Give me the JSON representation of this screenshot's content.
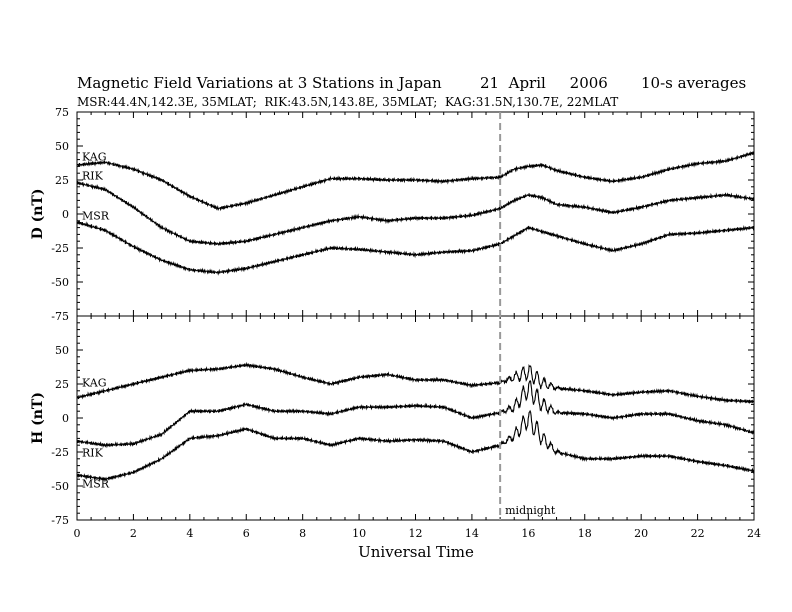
{
  "title": {
    "main": "Magnetic Field Variations at 3 Stations in Japan",
    "date": "21  April     2006",
    "avg": "10-s averages"
  },
  "subtitle": "MSR:44.4N,142.3E, 35MLAT;  RIK:43.5N,143.8E, 35MLAT;  KAG:31.5N,130.7E, 22MLAT",
  "chart_data": [
    {
      "type": "line",
      "panel": "D",
      "ylabel": "D (nT)",
      "ylim": [
        -75,
        75
      ],
      "yticks": [
        75,
        50,
        25,
        0,
        -25,
        -50,
        -75
      ],
      "xlim": [
        0,
        24
      ],
      "grid": false,
      "series": [
        {
          "name": "KAG",
          "x": [
            0,
            1,
            2,
            3,
            4,
            5,
            6,
            7,
            8,
            9,
            10,
            11,
            12,
            13,
            14,
            15,
            15.5,
            16,
            16.5,
            17,
            18,
            19,
            20,
            21,
            22,
            23,
            24
          ],
          "values": [
            36,
            38,
            33,
            25,
            13,
            4,
            8,
            14,
            20,
            26,
            26,
            25,
            25,
            24,
            26,
            27,
            33,
            35,
            36,
            32,
            27,
            24,
            27,
            33,
            37,
            39,
            45
          ]
        },
        {
          "name": "RIK",
          "x": [
            0,
            1,
            2,
            3,
            4,
            5,
            6,
            7,
            8,
            9,
            10,
            11,
            12,
            13,
            14,
            15,
            15.5,
            16,
            16.5,
            17,
            18,
            19,
            20,
            21,
            22,
            23,
            24
          ],
          "values": [
            23,
            18,
            5,
            -10,
            -20,
            -22,
            -20,
            -15,
            -10,
            -5,
            -2,
            -5,
            -3,
            -3,
            -1,
            4,
            10,
            14,
            12,
            7,
            5,
            1,
            5,
            10,
            12,
            14,
            11
          ]
        },
        {
          "name": "MSR",
          "x": [
            0,
            1,
            2,
            3,
            4,
            5,
            6,
            7,
            8,
            9,
            10,
            11,
            12,
            13,
            14,
            15,
            15.5,
            16,
            16.5,
            17,
            18,
            19,
            20,
            21,
            22,
            23,
            24
          ],
          "values": [
            -6,
            -12,
            -24,
            -34,
            -41,
            -43,
            -40,
            -35,
            -30,
            -25,
            -26,
            -28,
            -30,
            -28,
            -27,
            -22,
            -16,
            -10,
            -13,
            -16,
            -22,
            -27,
            -22,
            -15,
            -14,
            -12,
            -10
          ]
        }
      ]
    },
    {
      "type": "line",
      "panel": "H",
      "ylabel": "H (nT)",
      "xlabel": "Universal Time",
      "ylim": [
        -75,
        75
      ],
      "yticks": [
        75,
        50,
        25,
        0,
        -25,
        -50,
        -75
      ],
      "xlim": [
        0,
        24
      ],
      "xticks": [
        0,
        2,
        4,
        6,
        8,
        10,
        12,
        14,
        16,
        18,
        20,
        22,
        24
      ],
      "grid": false,
      "series": [
        {
          "name": "KAG",
          "x": [
            0,
            1,
            2,
            3,
            4,
            5,
            6,
            7,
            8,
            9,
            10,
            11,
            12,
            13,
            14,
            15,
            15.5,
            16,
            16.5,
            17,
            18,
            19,
            20,
            21,
            22,
            23,
            24
          ],
          "values": [
            15,
            20,
            25,
            30,
            35,
            36,
            39,
            36,
            30,
            25,
            30,
            32,
            28,
            28,
            24,
            26,
            30,
            34,
            26,
            22,
            20,
            17,
            19,
            20,
            16,
            13,
            12
          ]
        },
        {
          "name": "RIK",
          "x": [
            0,
            1,
            2,
            3,
            4,
            5,
            6,
            7,
            8,
            9,
            10,
            11,
            12,
            13,
            14,
            15,
            15.5,
            16,
            16.5,
            17,
            18,
            19,
            20,
            21,
            22,
            23,
            24
          ],
          "values": [
            -17,
            -20,
            -19,
            -12,
            5,
            5,
            10,
            5,
            5,
            3,
            8,
            8,
            9,
            8,
            0,
            4,
            8,
            22,
            10,
            4,
            3,
            0,
            3,
            3,
            -2,
            -5,
            -11
          ]
        },
        {
          "name": "MSR",
          "x": [
            0,
            1,
            2,
            3,
            4,
            5,
            6,
            7,
            8,
            9,
            10,
            11,
            12,
            13,
            14,
            15,
            15.5,
            16,
            16.5,
            17,
            18,
            19,
            20,
            21,
            22,
            23,
            24
          ],
          "values": [
            -42,
            -45,
            -40,
            -30,
            -15,
            -13,
            -8,
            -15,
            -15,
            -20,
            -15,
            -17,
            -16,
            -17,
            -25,
            -20,
            -13,
            0,
            -15,
            -25,
            -30,
            -30,
            -28,
            -28,
            -32,
            -35,
            -39
          ]
        }
      ]
    }
  ],
  "annotations": {
    "midnight_label": "midnight",
    "midnight_ut": 15
  }
}
